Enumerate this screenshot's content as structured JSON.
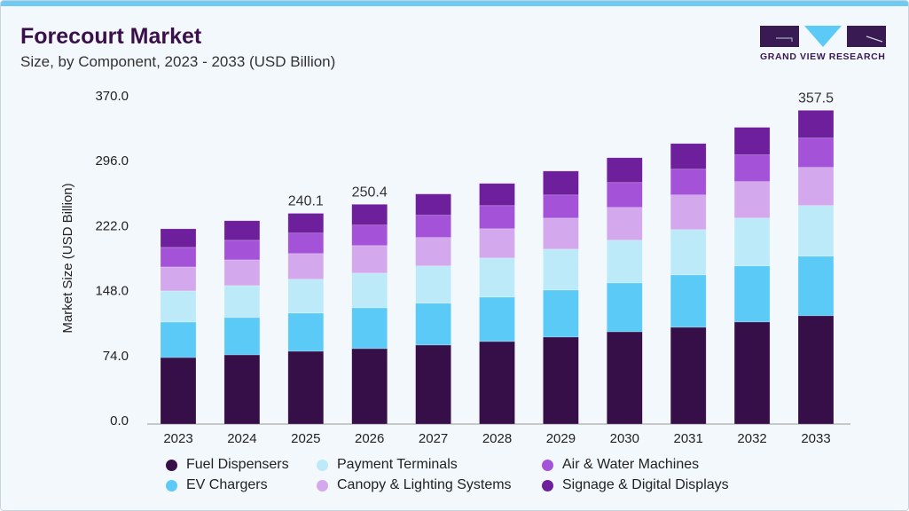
{
  "header": {
    "title": "Forecourt Market",
    "subtitle": "Size, by Component, 2023 - 2033 (USD Billion)"
  },
  "logo": {
    "text": "GRAND VIEW RESEARCH"
  },
  "chart_data": {
    "type": "bar",
    "stacked": true,
    "title": "Forecourt Market",
    "subtitle": "Size, by Component, 2023 - 2033 (USD Billion)",
    "xlabel": "",
    "ylabel": "Market Size (USD Billion)",
    "ylim": [
      0,
      370
    ],
    "yticks": [
      "0.0",
      "74.0",
      "148.0",
      "222.0",
      "296.0",
      "370.0"
    ],
    "grid": false,
    "legend_placement": "bottom",
    "categories": [
      "2023",
      "2024",
      "2025",
      "2026",
      "2027",
      "2028",
      "2029",
      "2030",
      "2031",
      "2032",
      "2033"
    ],
    "series": [
      {
        "name": "Fuel Dispensers",
        "color": "#360f48",
        "values": [
          75.8,
          78.9,
          83.0,
          86.0,
          90.1,
          94.1,
          99.2,
          105.2,
          110.3,
          116.4,
          123.5
        ]
      },
      {
        "name": "EV Chargers",
        "color": "#5ccaf6",
        "values": [
          40.5,
          42.5,
          43.5,
          46.5,
          47.6,
          50.6,
          53.6,
          55.7,
          59.7,
          63.8,
          67.8
        ]
      },
      {
        "name": "Payment Terminals",
        "color": "#bdeaf9",
        "values": [
          35.4,
          36.4,
          38.5,
          39.5,
          42.5,
          44.5,
          46.5,
          48.6,
          51.6,
          54.6,
          57.7
        ]
      },
      {
        "name": "Canopy & Lighting Systems",
        "color": "#d4a8ed",
        "values": [
          27.3,
          29.3,
          29.3,
          31.4,
          32.4,
          33.4,
          35.4,
          37.4,
          39.5,
          41.5,
          43.5
        ]
      },
      {
        "name": "Air & Water Machines",
        "color": "#a452d8",
        "values": [
          22.3,
          22.3,
          23.3,
          23.3,
          25.3,
          26.3,
          26.3,
          28.3,
          29.3,
          30.4,
          33.4
        ]
      },
      {
        "name": "Signage & Digital Displays",
        "color": "#6e209c",
        "values": [
          21.2,
          22.3,
          22.5,
          23.7,
          24.3,
          25.3,
          27.3,
          28.3,
          29.3,
          31.4,
          31.6
        ]
      }
    ],
    "data_labels": [
      {
        "category": "2025",
        "text": "240.1"
      },
      {
        "category": "2026",
        "text": "250.4"
      },
      {
        "category": "2033",
        "text": "357.5"
      }
    ]
  }
}
